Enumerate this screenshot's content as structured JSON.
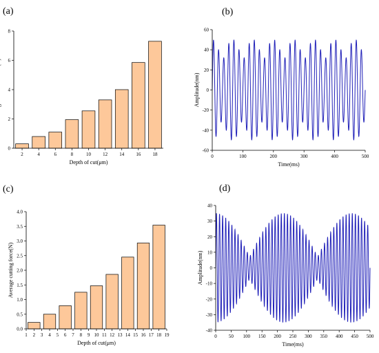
{
  "chart_data": [
    {
      "panel": "(a)",
      "type": "bar",
      "categories": [
        "2",
        "4",
        "6",
        "8",
        "10",
        "12",
        "14",
        "16",
        "18"
      ],
      "values": [
        0.3,
        0.8,
        1.1,
        1.95,
        2.55,
        3.3,
        4.0,
        5.85,
        7.3
      ],
      "xlabel": "Depth of cut(μm)",
      "ylabel": "Cutting force fluctuation(N)",
      "ylim": [
        0,
        8
      ],
      "yticks": [
        "0",
        "2",
        "4",
        "6",
        "8"
      ],
      "bar_color": "#fdc89a",
      "grid": false
    },
    {
      "panel": "(b)",
      "type": "line",
      "xlabel": "Time(ms)",
      "ylabel": "Amplitude(nm)",
      "xlim": [
        0,
        500
      ],
      "ylim": [
        -60,
        60
      ],
      "xticks": [
        "0",
        "100",
        "200",
        "300",
        "400",
        "500"
      ],
      "yticks": [
        "-60",
        "-40",
        "-20",
        "0",
        "20",
        "40",
        "60"
      ],
      "series": [
        {
          "frequency_hz": 60,
          "amplitude_nm": 50,
          "modulation_frequency_hz": 15,
          "line_color": "#1f1fb8"
        }
      ],
      "grid": false
    },
    {
      "panel": "(c)",
      "type": "bar",
      "categories": [
        "2",
        "4",
        "6",
        "8",
        "10",
        "12",
        "14",
        "16",
        "18"
      ],
      "values": [
        0.22,
        0.5,
        0.79,
        1.25,
        1.47,
        1.86,
        2.45,
        2.93,
        3.54
      ],
      "xlabel": "Depth of cut(μm)",
      "ylabel": "Average cutting force(N)",
      "xlim": [
        1,
        19
      ],
      "ylim": [
        0,
        4.0
      ],
      "xticks": [
        "1",
        "2",
        "3",
        "4",
        "5",
        "6",
        "7",
        "8",
        "9",
        "10",
        "11",
        "12",
        "13",
        "14",
        "15",
        "16",
        "17",
        "18",
        "19"
      ],
      "yticks": [
        "0.0",
        "0.5",
        "1.0",
        "1.5",
        "2.0",
        "2.5",
        "3.0",
        "3.5",
        "4.0"
      ],
      "bar_color": "#fdc89a",
      "grid": false
    },
    {
      "panel": "(d)",
      "type": "line",
      "xlabel": "Time(ms)",
      "ylabel": "Amplitude(nm)",
      "xlim": [
        0,
        500
      ],
      "ylim": [
        -40,
        40
      ],
      "xticks": [
        "0",
        "50",
        "100",
        "150",
        "200",
        "250",
        "300",
        "350",
        "400",
        "450",
        "500"
      ],
      "yticks": [
        "-40",
        "-30",
        "-20",
        "-10",
        "0",
        "10",
        "20",
        "30",
        "40"
      ],
      "series": [
        {
          "frequency_hz": 100,
          "amplitude_nm": 35,
          "beat_period_ms": 220,
          "line_color": "#1f1fb8"
        }
      ],
      "grid": false
    }
  ]
}
